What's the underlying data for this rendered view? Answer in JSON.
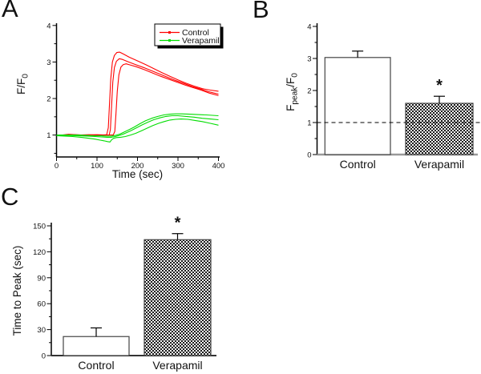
{
  "figure": {
    "background": "#ffffff",
    "panels": [
      {
        "label": "A"
      },
      {
        "label": "B"
      },
      {
        "label": "C"
      }
    ]
  },
  "colors": {
    "control_line": "#ff0000",
    "verapamil_line": "#00dd00",
    "axis": "#000000",
    "bar_border": "#444444",
    "bar_fill_control": "#ffffff",
    "baseline_b": "#999999",
    "baseline_c": "#333333",
    "text": "#111111"
  },
  "chart_data": [
    {
      "panel": "A",
      "type": "line",
      "xlabel": "Time (sec)",
      "ylabel": "F/F0",
      "ylabel_parts": [
        {
          "t": "F/F"
        },
        {
          "t": "0",
          "sub": true
        }
      ],
      "xlim": [
        0,
        400
      ],
      "ylim": [
        0.4,
        4
      ],
      "xticks": [
        0,
        100,
        200,
        300,
        400
      ],
      "yticks": [
        1,
        2,
        3,
        4
      ],
      "xminor": 50,
      "yminor": 0.5,
      "grid": false,
      "legend": {
        "position": "top-right",
        "entries": [
          {
            "label": "Control",
            "color": "#ff0000"
          },
          {
            "label": "Verapamil",
            "color": "#00dd00"
          }
        ]
      },
      "series": [
        {
          "name": "control-1",
          "group": "Control",
          "color": "#ff0000",
          "points": [
            [
              0,
              1.0
            ],
            [
              15,
              1.0
            ],
            [
              30,
              1.02
            ],
            [
              45,
              1.01
            ],
            [
              60,
              1.0
            ],
            [
              80,
              1.01
            ],
            [
              100,
              1.0
            ],
            [
              115,
              1.0
            ],
            [
              124,
              1.01
            ],
            [
              128,
              1.2
            ],
            [
              131,
              1.9
            ],
            [
              134,
              2.55
            ],
            [
              138,
              3.0
            ],
            [
              143,
              3.18
            ],
            [
              149,
              3.26
            ],
            [
              156,
              3.27
            ],
            [
              165,
              3.22
            ],
            [
              180,
              3.13
            ],
            [
              200,
              3.03
            ],
            [
              220,
              2.93
            ],
            [
              240,
              2.82
            ],
            [
              260,
              2.71
            ],
            [
              280,
              2.61
            ],
            [
              300,
              2.51
            ],
            [
              320,
              2.42
            ],
            [
              340,
              2.34
            ],
            [
              360,
              2.27
            ],
            [
              380,
              2.23
            ],
            [
              400,
              2.2
            ]
          ]
        },
        {
          "name": "control-2",
          "group": "Control",
          "color": "#ff0000",
          "points": [
            [
              0,
              0.99
            ],
            [
              20,
              1.0
            ],
            [
              40,
              1.01
            ],
            [
              60,
              1.0
            ],
            [
              80,
              1.0
            ],
            [
              100,
              1.01
            ],
            [
              120,
              1.0
            ],
            [
              130,
              1.0
            ],
            [
              133,
              1.15
            ],
            [
              136,
              1.8
            ],
            [
              139,
              2.45
            ],
            [
              143,
              2.85
            ],
            [
              148,
              3.02
            ],
            [
              155,
              3.09
            ],
            [
              163,
              3.07
            ],
            [
              178,
              3.0
            ],
            [
              195,
              2.93
            ],
            [
              215,
              2.85
            ],
            [
              235,
              2.76
            ],
            [
              255,
              2.67
            ],
            [
              275,
              2.58
            ],
            [
              295,
              2.49
            ],
            [
              315,
              2.41
            ],
            [
              335,
              2.33
            ],
            [
              355,
              2.26
            ],
            [
              375,
              2.19
            ],
            [
              400,
              2.12
            ]
          ]
        },
        {
          "name": "control-3",
          "group": "Control",
          "color": "#ff0000",
          "points": [
            [
              0,
              0.98
            ],
            [
              25,
              0.99
            ],
            [
              50,
              1.0
            ],
            [
              75,
              1.0
            ],
            [
              100,
              1.0
            ],
            [
              125,
              1.0
            ],
            [
              140,
              1.0
            ],
            [
              144,
              1.1
            ],
            [
              147,
              1.6
            ],
            [
              150,
              2.2
            ],
            [
              154,
              2.65
            ],
            [
              159,
              2.86
            ],
            [
              165,
              2.93
            ],
            [
              172,
              2.95
            ],
            [
              182,
              2.92
            ],
            [
              197,
              2.87
            ],
            [
              217,
              2.79
            ],
            [
              237,
              2.7
            ],
            [
              257,
              2.61
            ],
            [
              277,
              2.53
            ],
            [
              297,
              2.45
            ],
            [
              317,
              2.37
            ],
            [
              337,
              2.3
            ],
            [
              357,
              2.23
            ],
            [
              377,
              2.15
            ],
            [
              400,
              2.08
            ]
          ]
        },
        {
          "name": "verapamil-1",
          "group": "Verapamil",
          "color": "#00dd00",
          "points": [
            [
              0,
              1.0
            ],
            [
              25,
              1.0
            ],
            [
              50,
              1.0
            ],
            [
              75,
              0.99
            ],
            [
              95,
              0.98
            ],
            [
              110,
              0.98
            ],
            [
              125,
              0.97
            ],
            [
              135,
              0.97
            ],
            [
              145,
              0.99
            ],
            [
              155,
              1.02
            ],
            [
              165,
              1.07
            ],
            [
              178,
              1.14
            ],
            [
              192,
              1.22
            ],
            [
              206,
              1.31
            ],
            [
              220,
              1.39
            ],
            [
              235,
              1.46
            ],
            [
              250,
              1.51
            ],
            [
              265,
              1.55
            ],
            [
              280,
              1.57
            ],
            [
              295,
              1.58
            ],
            [
              310,
              1.58
            ],
            [
              330,
              1.57
            ],
            [
              350,
              1.56
            ],
            [
              370,
              1.55
            ],
            [
              385,
              1.54
            ],
            [
              400,
              1.53
            ]
          ]
        },
        {
          "name": "verapamil-2",
          "group": "Verapamil",
          "color": "#00dd00",
          "points": [
            [
              0,
              0.99
            ],
            [
              25,
              0.99
            ],
            [
              50,
              0.98
            ],
            [
              75,
              0.97
            ],
            [
              95,
              0.96
            ],
            [
              110,
              0.95
            ],
            [
              125,
              0.94
            ],
            [
              135,
              0.94
            ],
            [
              145,
              0.96
            ],
            [
              155,
              0.99
            ],
            [
              168,
              1.04
            ],
            [
              182,
              1.11
            ],
            [
              196,
              1.19
            ],
            [
              210,
              1.27
            ],
            [
              225,
              1.35
            ],
            [
              240,
              1.42
            ],
            [
              255,
              1.47
            ],
            [
              270,
              1.51
            ],
            [
              285,
              1.53
            ],
            [
              300,
              1.53
            ],
            [
              320,
              1.51
            ],
            [
              340,
              1.49
            ],
            [
              360,
              1.46
            ],
            [
              380,
              1.44
            ],
            [
              400,
              1.42
            ]
          ]
        },
        {
          "name": "verapamil-3",
          "group": "Verapamil",
          "color": "#00dd00",
          "points": [
            [
              0,
              0.98
            ],
            [
              20,
              0.97
            ],
            [
              40,
              0.96
            ],
            [
              60,
              0.94
            ],
            [
              80,
              0.91
            ],
            [
              95,
              0.89
            ],
            [
              108,
              0.86
            ],
            [
              118,
              0.84
            ],
            [
              126,
              0.82
            ],
            [
              132,
              0.81
            ],
            [
              136,
              0.87
            ],
            [
              141,
              0.91
            ],
            [
              148,
              0.93
            ],
            [
              158,
              0.94
            ],
            [
              170,
              0.96
            ],
            [
              183,
              1.0
            ],
            [
              196,
              1.05
            ],
            [
              210,
              1.12
            ],
            [
              224,
              1.19
            ],
            [
              238,
              1.26
            ],
            [
              252,
              1.32
            ],
            [
              266,
              1.37
            ],
            [
              280,
              1.41
            ],
            [
              294,
              1.43
            ],
            [
              308,
              1.44
            ],
            [
              325,
              1.43
            ],
            [
              342,
              1.4
            ],
            [
              360,
              1.37
            ],
            [
              380,
              1.32
            ],
            [
              400,
              1.27
            ]
          ]
        }
      ]
    },
    {
      "panel": "B",
      "type": "bar",
      "ylabel": "Fpeak/F0",
      "ylabel_parts": [
        {
          "t": "F"
        },
        {
          "t": "peak",
          "sub": true
        },
        {
          "t": "/F"
        },
        {
          "t": "0",
          "sub": true
        }
      ],
      "categories": [
        "Control",
        "Verapamil"
      ],
      "values": [
        3.03,
        1.6
      ],
      "errors": [
        0.2,
        0.22
      ],
      "significance": [
        null,
        "*"
      ],
      "fills": [
        "white",
        "checker"
      ],
      "ylim": [
        0,
        4
      ],
      "yticks": [
        0,
        1,
        2,
        3,
        4
      ],
      "yminor": 0.5,
      "refline": 1,
      "refline_style": "dashed"
    },
    {
      "panel": "C",
      "type": "bar",
      "ylabel": "Time to Peak (sec)",
      "ylabel_parts": [
        {
          "t": "Time to Peak (sec)"
        }
      ],
      "categories": [
        "Control",
        "Verapamil"
      ],
      "values": [
        22,
        134
      ],
      "errors": [
        10,
        7
      ],
      "significance": [
        null,
        "*"
      ],
      "fills": [
        "white",
        "checker"
      ],
      "ylim": [
        0,
        150
      ],
      "yticks": [
        0,
        30,
        60,
        90,
        120,
        150
      ],
      "yminor": 15
    }
  ]
}
